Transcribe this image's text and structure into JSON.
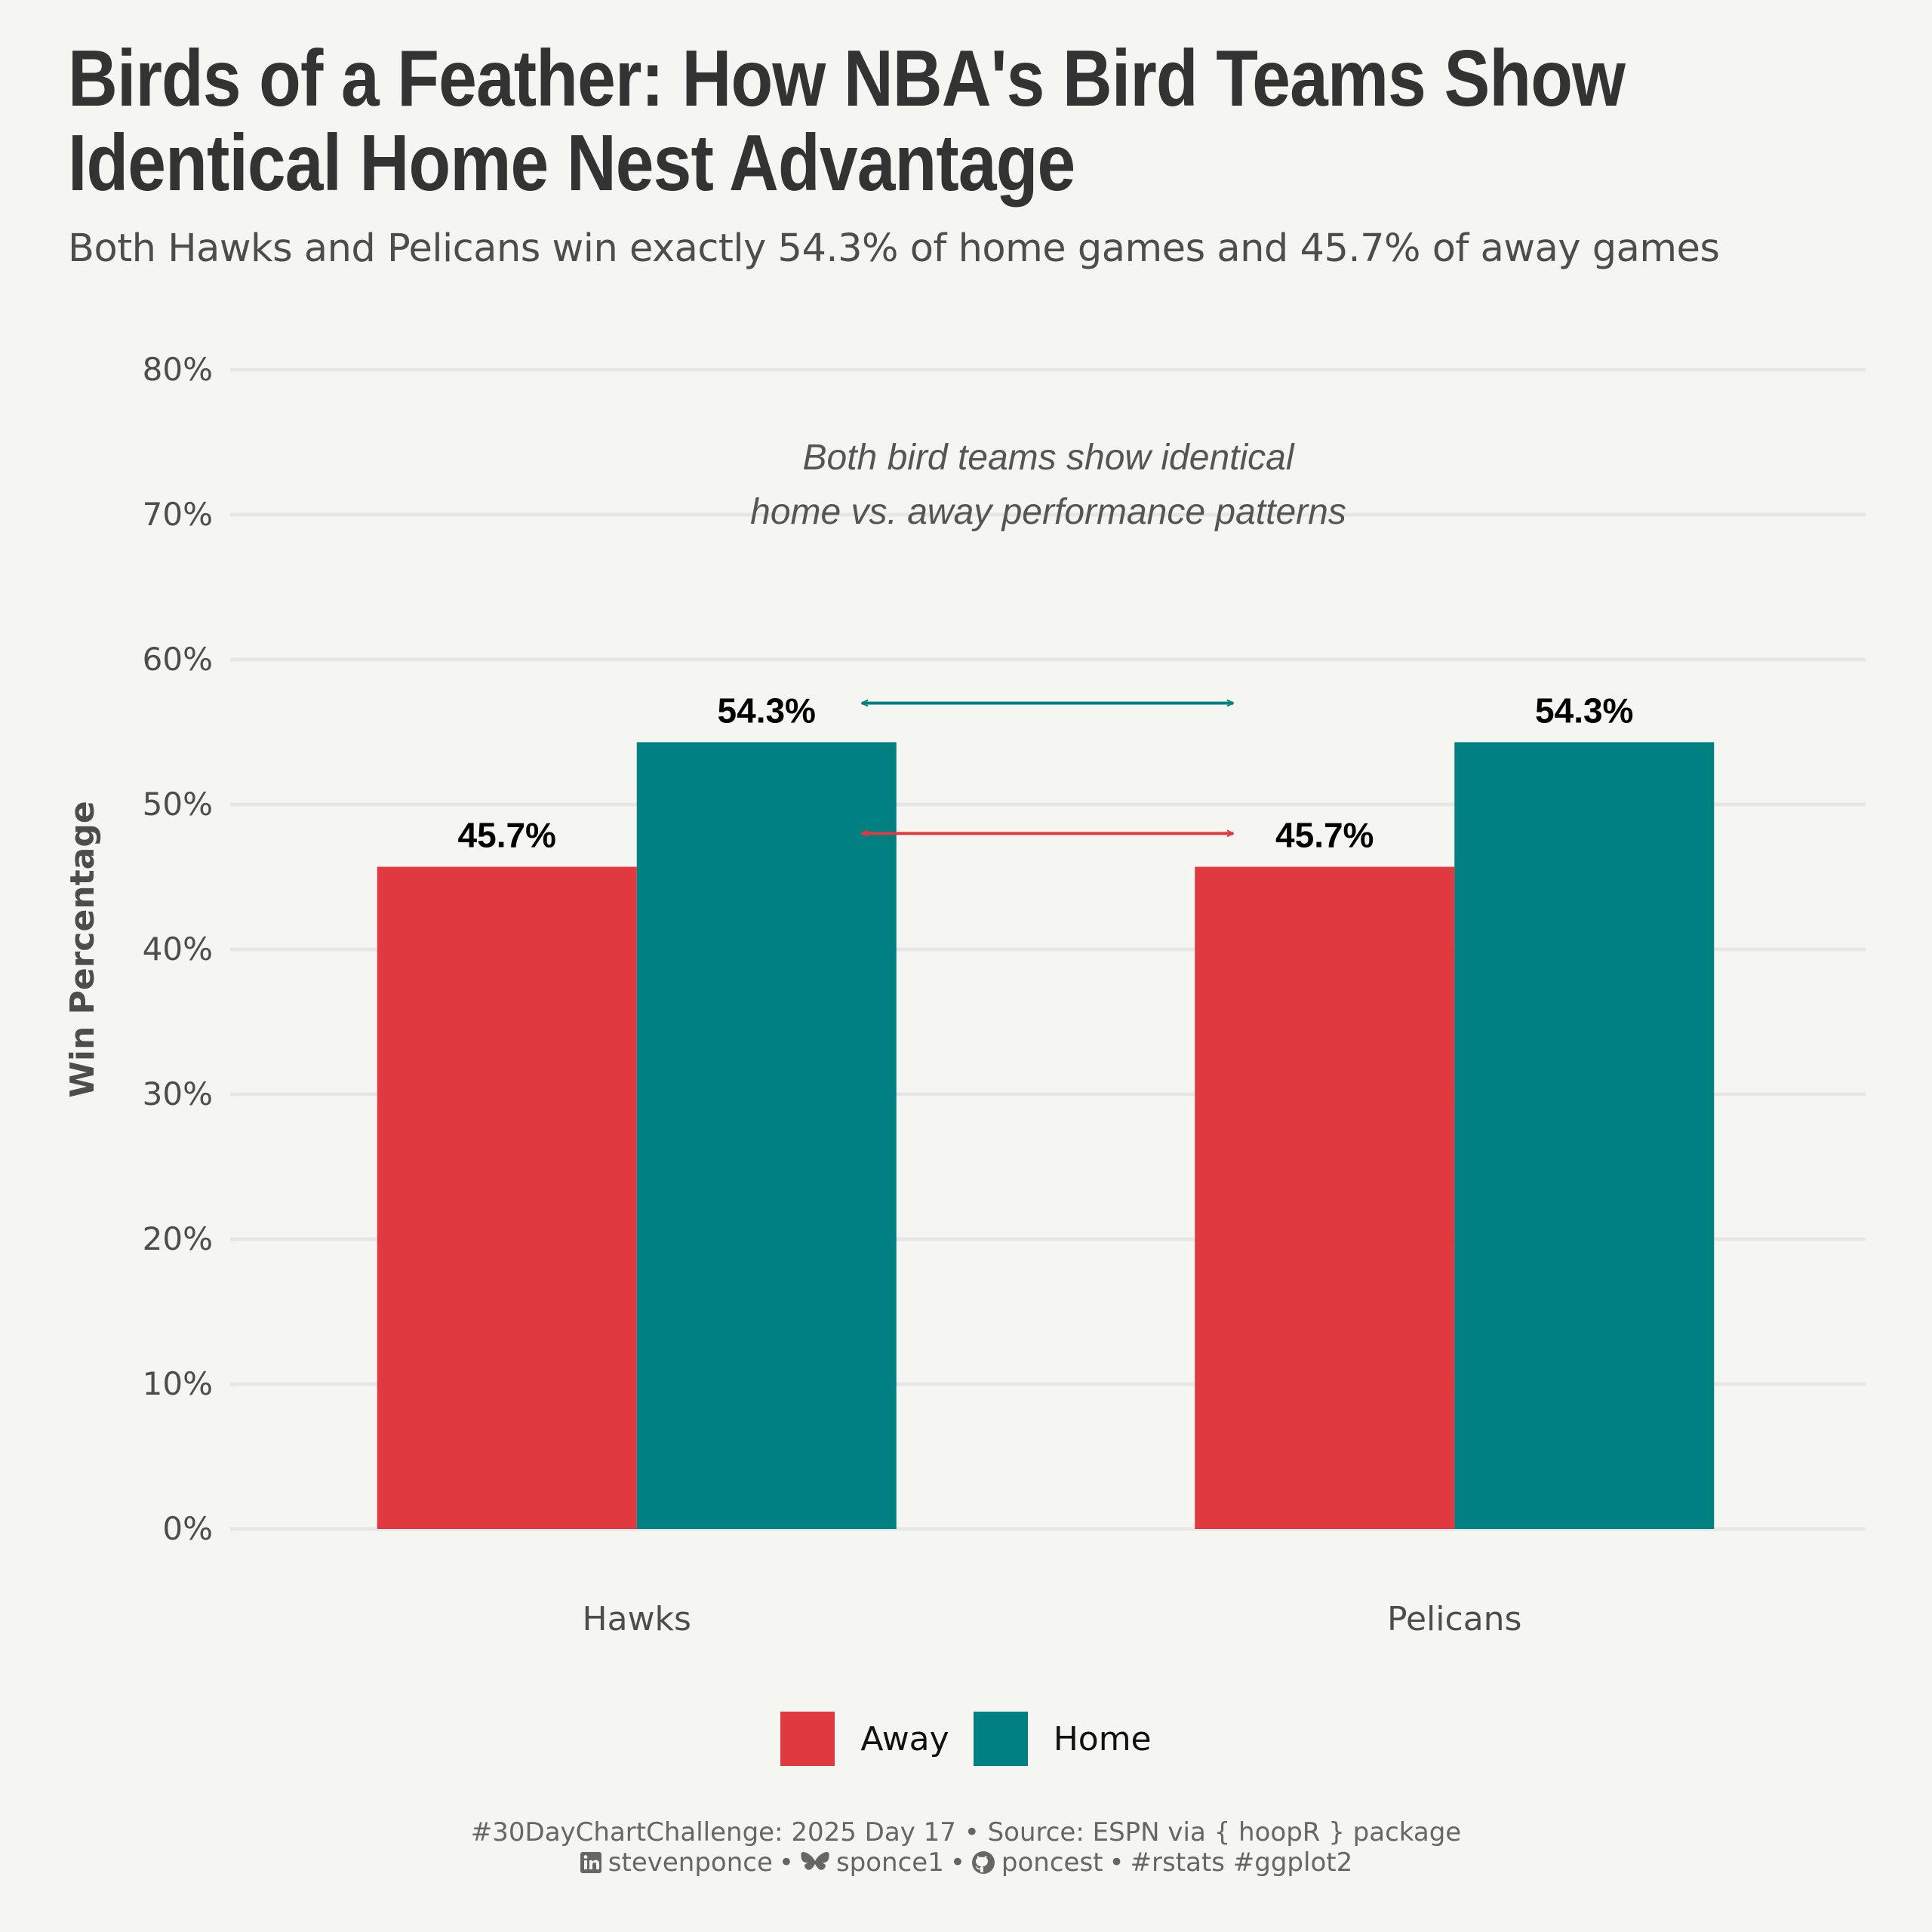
{
  "title": "Birds of a Feather: How NBA's Bird Teams Show Identical Home Nest Advantage",
  "subtitle": "Both Hawks and Pelicans win exactly 54.3% of home games and 45.7% of away games",
  "colors": {
    "away": "#e03a40",
    "home": "#008080",
    "background": "#f5f5f1",
    "grid": "#e6e6e6"
  },
  "chart_data": {
    "type": "bar",
    "categories": [
      "Hawks",
      "Pelicans"
    ],
    "series": [
      {
        "name": "Away",
        "values": [
          45.7,
          45.7
        ],
        "labels": [
          "45.7%",
          "45.7%"
        ]
      },
      {
        "name": "Home",
        "values": [
          54.3,
          54.3
        ],
        "labels": [
          "54.3%",
          "54.3%"
        ]
      }
    ],
    "ylabel": "Win Percentage",
    "xlabel": "",
    "ylim": [
      0,
      80
    ],
    "yticks": [
      "0%",
      "10%",
      "20%",
      "30%",
      "40%",
      "50%",
      "60%",
      "70%",
      "80%"
    ],
    "grid": true,
    "legend_position": "bottom",
    "annotation": [
      "Both bird teams show identical",
      "home vs. away performance patterns"
    ],
    "arrows": [
      {
        "series": "Home",
        "y": 57
      },
      {
        "series": "Away",
        "y": 48
      }
    ]
  },
  "caption": {
    "line1": "#30DayChartChallenge: 2025 Day 17 • Source: ESPN via { hoopR } package",
    "linkedin": "stevenponce",
    "bluesky": "sponce1",
    "github": "poncest",
    "tags": "#rstats #ggplot2"
  }
}
